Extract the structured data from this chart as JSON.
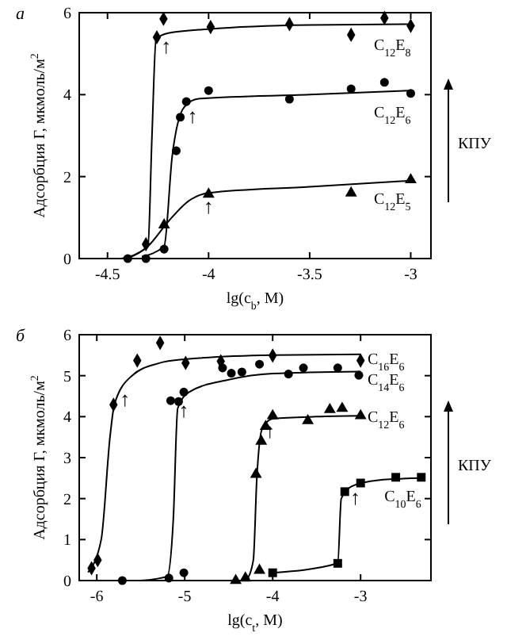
{
  "chart_data": [
    {
      "type": "scatter",
      "title": "а",
      "xlabel": "lg(c$_{b}$, M)",
      "ylabel": "Адсорбция Г, мкмоль/м$^{2}$",
      "xlim": [
        -4.64,
        -2.9
      ],
      "ylim": [
        0,
        6
      ],
      "xticks": [
        -4.5,
        -4,
        -3.5,
        -3
      ],
      "yticks": [
        0,
        2,
        4,
        6
      ],
      "grid": false,
      "series": [
        {
          "name": "C$_{12}$E$_{8}$",
          "color": "#000000",
          "marker": "diamond",
          "x": [
            -4.31,
            -4.256,
            -4.223,
            -3.99,
            -3.6,
            -3.295,
            -3.13,
            -3.0
          ],
          "values": [
            0.35,
            5.4,
            5.85,
            5.65,
            5.72,
            5.46,
            5.87,
            5.68
          ]
        },
        {
          "name": "C$_{12}$E$_{6}$",
          "color": "#000000",
          "marker": "circle",
          "x": [
            -4.4,
            -4.31,
            -4.22,
            -4.16,
            -4.14,
            -4.11,
            -4.0,
            -3.6,
            -3.295,
            -3.13,
            -3.0
          ],
          "values": [
            0,
            0,
            0.23,
            2.63,
            3.45,
            3.83,
            4.1,
            3.89,
            4.14,
            4.3,
            4.03
          ]
        },
        {
          "name": "C$_{12}$E$_{5}$",
          "color": "#000000",
          "marker": "triangle",
          "x": [
            -4.22,
            -4.0,
            -3.295,
            -3.0
          ],
          "values": [
            0.82,
            1.57,
            1.6,
            1.92
          ]
        },
        {
          "type": "line",
          "color": "#000000",
          "marker": "none",
          "x": [
            -4.43,
            -4.3,
            -4.28,
            -4.26,
            -4.2,
            -4.0,
            -3.5,
            -3.0
          ],
          "values": [
            0,
            0.3,
            3.0,
            5.35,
            5.5,
            5.6,
            5.7,
            5.72
          ]
        },
        {
          "type": "line",
          "color": "#000000",
          "marker": "none",
          "x": [
            -4.33,
            -4.22,
            -4.18,
            -4.12,
            -4.05,
            -3.5,
            -3.0
          ],
          "values": [
            0.05,
            0.3,
            2.5,
            3.7,
            3.9,
            4.0,
            4.1
          ]
        },
        {
          "type": "line",
          "color": "#000000",
          "marker": "none",
          "x": [
            -4.4,
            -4.3,
            -4.2,
            -4.1,
            -4.0,
            -3.5,
            -3.0
          ],
          "values": [
            0,
            0.3,
            0.9,
            1.4,
            1.6,
            1.75,
            1.9
          ]
        }
      ],
      "annotations": [
        "КПУ",
        {
          "text": "↑",
          "x": -4.21,
          "y": 5.48
        },
        {
          "text": "↑",
          "x": -4.08,
          "y": 3.78
        },
        {
          "text": "↑",
          "x": -4.0,
          "y": 1.57
        }
      ]
    },
    {
      "type": "scatter",
      "title": "б",
      "xlabel": "lg(c$_{t}$, M)",
      "ylabel": "Адсорбция Г, мкмоль/м$^{2}$",
      "xlim": [
        -6.2,
        -2.2
      ],
      "ylim": [
        0,
        6
      ],
      "xticks": [
        -6,
        -5,
        -4,
        -3
      ],
      "yticks": [
        0,
        1,
        2,
        3,
        4,
        5,
        6
      ],
      "grid": false,
      "legend": "right",
      "series": [
        {
          "name": "C$_{16}$E$_{6}$",
          "color": "#000000",
          "marker": "diamond",
          "x": [
            -6.06,
            -5.99,
            -5.81,
            -5.54,
            -5.28,
            -4.99,
            -4.59,
            -4.0,
            -3.0
          ],
          "values": [
            0.3,
            0.5,
            4.29,
            5.37,
            5.8,
            5.31,
            5.35,
            5.49,
            5.37
          ]
        },
        {
          "name": "C$_{14}$E$_{6}$",
          "color": "#000000",
          "marker": "circle",
          "x": [
            -5.71,
            -5.18,
            -5.01,
            -5.16,
            -5.07,
            -5.01,
            -4.57,
            -4.47,
            -4.35,
            -4.15,
            -3.82,
            -3.65,
            -3.26,
            -3.02
          ],
          "values": [
            0,
            0.06,
            0.19,
            4.39,
            4.37,
            4.6,
            5.19,
            5.06,
            5.09,
            5.28,
            5.04,
            5.19,
            5.19,
            5.01
          ]
        },
        {
          "name": "C$_{12}$E$_{6}$",
          "color": "#000000",
          "marker": "triangle",
          "x": [
            -4.42,
            -4.31,
            -4.15,
            -4.19,
            -4.13,
            -4.08,
            -4.0,
            -3.6,
            -3.35,
            -3.21,
            -3.0
          ],
          "values": [
            0,
            0.06,
            0.25,
            2.59,
            3.4,
            3.76,
            4.02,
            3.9,
            4.17,
            4.2,
            4.02
          ]
        },
        {
          "name": "C$_{10}$E$_{6}$",
          "color": "#000000",
          "marker": "square",
          "x": [
            -4.0,
            -3.26,
            -3.18,
            -3.0,
            -2.6,
            -2.31
          ],
          "values": [
            0.19,
            0.42,
            2.17,
            2.38,
            2.52,
            2.52
          ]
        },
        {
          "type": "line",
          "color": "#000000",
          "marker": "none",
          "x": [
            -6.1,
            -5.95,
            -5.85,
            -5.8,
            -5.6,
            -5.3,
            -5.0,
            -4.0,
            -3.0
          ],
          "values": [
            0.2,
            1.0,
            3.5,
            4.3,
            5.0,
            5.3,
            5.4,
            5.5,
            5.52
          ]
        },
        {
          "type": "line",
          "color": "#000000",
          "marker": "none",
          "x": [
            -5.5,
            -5.2,
            -5.13,
            -5.08,
            -4.95,
            -4.5,
            -4.0,
            -3.0
          ],
          "values": [
            0,
            0.1,
            1.5,
            4.2,
            4.6,
            4.9,
            5.05,
            5.1
          ]
        },
        {
          "type": "line",
          "color": "#000000",
          "marker": "none",
          "x": [
            -4.3,
            -4.22,
            -4.18,
            -4.12,
            -4.0,
            -3.5,
            -3.0
          ],
          "values": [
            0,
            0.5,
            2.5,
            3.7,
            3.95,
            4.0,
            4.02
          ]
        },
        {
          "type": "line",
          "color": "#000000",
          "marker": "none",
          "x": [
            -4.0,
            -3.26,
            -3.22,
            -3.1,
            -2.8,
            -2.31
          ],
          "values": [
            0.19,
            0.42,
            2.0,
            2.3,
            2.45,
            2.5
          ]
        }
      ],
      "annotations": [
        "КПУ",
        {
          "text": "↑",
          "x": -5.68,
          "y": 4.72
        },
        {
          "text": "↑",
          "x": -5.01,
          "y": 4.45
        },
        {
          "text": "↑",
          "x": -4.03,
          "y": 3.94
        },
        {
          "text": "↑",
          "x": -3.06,
          "y": 2.32
        }
      ]
    }
  ]
}
